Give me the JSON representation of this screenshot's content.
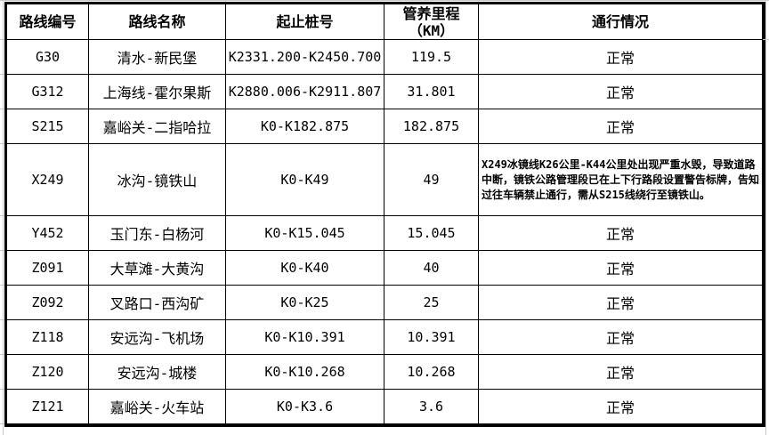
{
  "table": {
    "header": {
      "route_code": "路线编号",
      "route_name": "路线名称",
      "stake_range": "起止桩号",
      "mileage_line1": "管养里程",
      "mileage_line2": "（KM）",
      "traffic_status": "通行情况"
    },
    "rows": [
      {
        "code": "G30",
        "name": "清水-新民堡",
        "stakes": "K2331.200-K2450.700",
        "mileage": "119.5",
        "status": "正常"
      },
      {
        "code": "G312",
        "name": "上海线-霍尔果斯",
        "stakes": "K2880.006-K2911.807",
        "mileage": "31.801",
        "status": "正常"
      },
      {
        "code": "S215",
        "name": "嘉峪关-二指哈拉",
        "stakes": "K0-K182.875",
        "mileage": "182.875",
        "status": "正常"
      },
      {
        "code": "X249",
        "name": "冰沟-镜铁山",
        "stakes": "K0-K49",
        "mileage": "49",
        "status": "X249冰镜线K26公里-K44公里处出现严重水毁，导致道路中断，镜铁公路管理段已在上下行路段设置警告标牌，告知过往车辆禁止通行，需从S215线绕行至镜铁山。"
      },
      {
        "code": "Y452",
        "name": "玉门东-白杨河",
        "stakes": "K0-K15.045",
        "mileage": "15.045",
        "status": "正常"
      },
      {
        "code": "Z091",
        "name": "大草滩-大黄沟",
        "stakes": "K0-K40",
        "mileage": "40",
        "status": "正常"
      },
      {
        "code": "Z092",
        "name": "叉路口-西沟矿",
        "stakes": "K0-K25",
        "mileage": "25",
        "status": "正常"
      },
      {
        "code": "Z118",
        "name": "安远沟-飞机场",
        "stakes": "K0-K10.391",
        "mileage": "10.391",
        "status": "正常"
      },
      {
        "code": "Z120",
        "name": "安远沟-城楼",
        "stakes": "K0-K10.268",
        "mileage": "10.268",
        "status": "正常"
      },
      {
        "code": "Z121",
        "name": "嘉峪关-火车站",
        "stakes": "K0-K3.6",
        "mileage": "3.6",
        "status": "正常"
      }
    ]
  },
  "colors": {
    "border": "#000000",
    "outer_gridline": "#c9c9c9",
    "text": "#000000",
    "background": "#ffffff"
  }
}
